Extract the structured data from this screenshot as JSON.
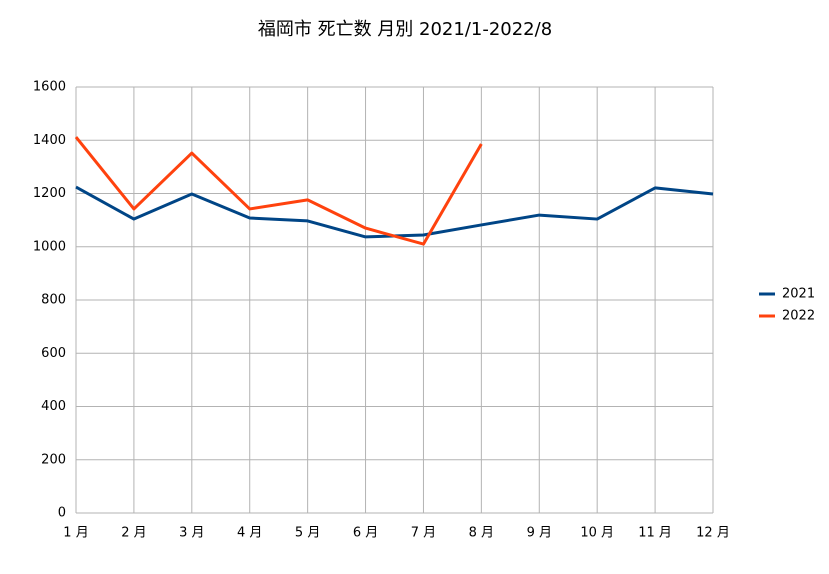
{
  "chart_data": {
    "type": "line",
    "title": "福岡市  死亡数  月別  2021/1-2022/8",
    "categories": [
      "1 月",
      "2 月",
      "3 月",
      "4 月",
      "5 月",
      "6 月",
      "7 月",
      "8 月",
      "9 月",
      "10 月",
      "11 月",
      "12 月"
    ],
    "series": [
      {
        "name": "2021",
        "color": "#004586",
        "values": [
          1224,
          1104,
          1198,
          1108,
          1097,
          1037,
          1044,
          1082,
          1119,
          1104,
          1221,
          1198
        ]
      },
      {
        "name": "2022",
        "color": "#ff420e",
        "values": [
          1412,
          1142,
          1352,
          1142,
          1176,
          1070,
          1010,
          1386,
          null,
          null,
          null,
          null
        ]
      }
    ],
    "ylim": [
      0,
      1600
    ],
    "yticks": [
      0,
      200,
      400,
      600,
      800,
      1000,
      1200,
      1400,
      1600
    ],
    "grid": true,
    "legend": "right"
  }
}
